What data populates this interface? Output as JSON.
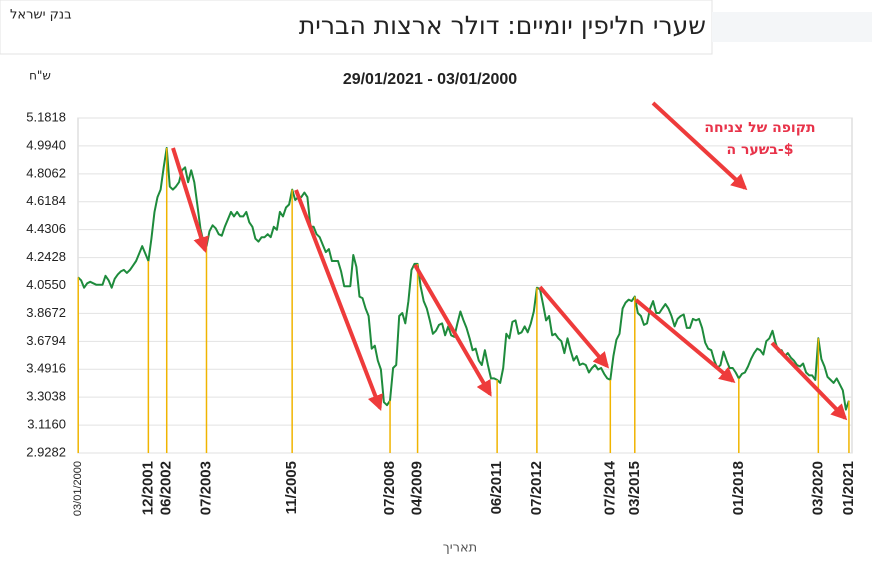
{
  "chart_data": {
    "type": "line",
    "title": "שערי חליפין יומיים: דולר ארצות הברית",
    "source": "בנק ישראל",
    "subtitle": "29/01/2021 - 03/01/2000",
    "y_label": "ש\"ח",
    "x_label": "תאריך",
    "annotation": [
      "תקופה של צניחה",
      "בשער ה-$"
    ],
    "annotation_color": "#e8334a",
    "color": "#1e8b3c",
    "tick_line_color": "#f0b400",
    "grid": true,
    "ylim": [
      2.9282,
      5.1818
    ],
    "yticks": [
      2.9282,
      {
        "value": 3.116,
        "label": "3.1160"
      },
      3.3038,
      3.4916,
      3.6794,
      3.8672,
      {
        "value": 4.055,
        "label": "4.0550"
      },
      4.2428,
      4.4306,
      4.6184,
      4.8062,
      {
        "value": 4.994,
        "label": "4.9940"
      },
      5.1818
    ],
    "xlim": [
      "01/2000",
      "02/2021"
    ],
    "xticks": [
      "03/01/2000",
      "12/2001",
      "06/2002",
      "07/2003",
      "11/2005",
      "07/2008",
      "04/2009",
      "06/2011",
      "07/2012",
      "07/2014",
      "03/2015",
      "01/2018",
      "03/2020",
      "01/2021"
    ],
    "x": [
      "01/2000",
      "02/2000",
      "03/2000",
      "04/2000",
      "05/2000",
      "06/2000",
      "07/2000",
      "08/2000",
      "09/2000",
      "10/2000",
      "11/2000",
      "12/2000",
      "01/2001",
      "02/2001",
      "03/2001",
      "04/2001",
      "05/2001",
      "06/2001",
      "07/2001",
      "08/2001",
      "09/2001",
      "10/2001",
      "11/2001",
      "12/2001",
      "01/2002",
      "02/2002",
      "03/2002",
      "04/2002",
      "05/2002",
      "06/2002",
      "07/2002",
      "08/2002",
      "09/2002",
      "10/2002",
      "11/2002",
      "12/2002",
      "01/2003",
      "02/2003",
      "03/2003",
      "04/2003",
      "05/2003",
      "06/2003",
      "07/2003",
      "08/2003",
      "09/2003",
      "10/2003",
      "11/2003",
      "12/2003",
      "01/2004",
      "02/2004",
      "03/2004",
      "04/2004",
      "05/2004",
      "06/2004",
      "07/2004",
      "08/2004",
      "09/2004",
      "10/2004",
      "11/2004",
      "12/2004",
      "01/2005",
      "02/2005",
      "03/2005",
      "04/2005",
      "05/2005",
      "06/2005",
      "07/2005",
      "08/2005",
      "09/2005",
      "10/2005",
      "11/2005",
      "12/2005",
      "01/2006",
      "02/2006",
      "03/2006",
      "04/2006",
      "05/2006",
      "06/2006",
      "07/2006",
      "08/2006",
      "09/2006",
      "10/2006",
      "11/2006",
      "12/2006",
      "01/2007",
      "02/2007",
      "03/2007",
      "04/2007",
      "05/2007",
      "06/2007",
      "07/2007",
      "08/2007",
      "09/2007",
      "10/2007",
      "11/2007",
      "12/2007",
      "01/2008",
      "02/2008",
      "03/2008",
      "04/2008",
      "05/2008",
      "06/2008",
      "07/2008",
      "08/2008",
      "09/2008",
      "10/2008",
      "11/2008",
      "12/2008",
      "01/2009",
      "02/2009",
      "03/2009",
      "04/2009",
      "05/2009",
      "06/2009",
      "07/2009",
      "08/2009",
      "09/2009",
      "10/2009",
      "11/2009",
      "12/2009",
      "01/2010",
      "02/2010",
      "03/2010",
      "04/2010",
      "05/2010",
      "06/2010",
      "07/2010",
      "08/2010",
      "09/2010",
      "10/2010",
      "11/2010",
      "12/2010",
      "01/2011",
      "02/2011",
      "03/2011",
      "04/2011",
      "05/2011",
      "06/2011",
      "07/2011",
      "08/2011",
      "09/2011",
      "10/2011",
      "11/2011",
      "12/2011",
      "01/2012",
      "02/2012",
      "03/2012",
      "04/2012",
      "05/2012",
      "06/2012",
      "07/2012",
      "08/2012",
      "09/2012",
      "10/2012",
      "11/2012",
      "12/2012",
      "01/2013",
      "02/2013",
      "03/2013",
      "04/2013",
      "05/2013",
      "06/2013",
      "07/2013",
      "08/2013",
      "09/2013",
      "10/2013",
      "11/2013",
      "12/2013",
      "01/2014",
      "02/2014",
      "03/2014",
      "04/2014",
      "05/2014",
      "06/2014",
      "07/2014",
      "08/2014",
      "09/2014",
      "10/2014",
      "11/2014",
      "12/2014",
      "01/2015",
      "02/2015",
      "03/2015",
      "04/2015",
      "05/2015",
      "06/2015",
      "07/2015",
      "08/2015",
      "09/2015",
      "10/2015",
      "11/2015",
      "12/2015",
      "01/2016",
      "02/2016",
      "03/2016",
      "04/2016",
      "05/2016",
      "06/2016",
      "07/2016",
      "08/2016",
      "09/2016",
      "10/2016",
      "11/2016",
      "12/2016",
      "01/2017",
      "02/2017",
      "03/2017",
      "04/2017",
      "05/2017",
      "06/2017",
      "07/2017",
      "08/2017",
      "09/2017",
      "10/2017",
      "11/2017",
      "12/2017",
      "01/2018",
      "02/2018",
      "03/2018",
      "04/2018",
      "05/2018",
      "06/2018",
      "07/2018",
      "08/2018",
      "09/2018",
      "10/2018",
      "11/2018",
      "12/2018",
      "01/2019",
      "02/2019",
      "03/2019",
      "04/2019",
      "05/2019",
      "06/2019",
      "07/2019",
      "08/2019",
      "09/2019",
      "10/2019",
      "11/2019",
      "12/2019",
      "01/2020",
      "02/2020",
      "03/2020",
      "04/2020",
      "05/2020",
      "06/2020",
      "07/2020",
      "08/2020",
      "09/2020",
      "10/2020",
      "11/2020",
      "12/2020",
      "01/2021"
    ],
    "values": [
      4.11,
      4.09,
      4.04,
      4.07,
      4.08,
      4.07,
      4.06,
      4.06,
      4.06,
      4.12,
      4.09,
      4.04,
      4.1,
      4.13,
      4.15,
      4.16,
      4.14,
      4.16,
      4.19,
      4.22,
      4.27,
      4.32,
      4.27,
      4.22,
      4.37,
      4.55,
      4.65,
      4.7,
      4.85,
      4.98,
      4.72,
      4.7,
      4.72,
      4.75,
      4.83,
      4.85,
      4.75,
      4.83,
      4.75,
      4.6,
      4.44,
      4.35,
      4.32,
      4.42,
      4.46,
      4.44,
      4.4,
      4.39,
      4.45,
      4.5,
      4.55,
      4.52,
      4.55,
      4.52,
      4.52,
      4.55,
      4.48,
      4.45,
      4.37,
      4.35,
      4.38,
      4.38,
      4.4,
      4.38,
      4.45,
      4.43,
      4.55,
      4.52,
      4.58,
      4.6,
      4.7,
      4.63,
      4.65,
      4.65,
      4.68,
      4.65,
      4.45,
      4.45,
      4.4,
      4.38,
      4.33,
      4.28,
      4.3,
      4.22,
      4.22,
      4.22,
      4.15,
      4.05,
      4.05,
      4.05,
      4.26,
      4.18,
      3.98,
      3.97,
      3.9,
      3.85,
      3.63,
      3.65,
      3.55,
      3.49,
      3.27,
      3.25,
      3.28,
      3.5,
      3.52,
      3.85,
      3.87,
      3.8,
      3.95,
      4.16,
      4.2,
      4.2,
      4.05,
      3.95,
      3.9,
      3.82,
      3.73,
      3.75,
      3.79,
      3.8,
      3.72,
      3.78,
      3.72,
      3.71,
      3.8,
      3.88,
      3.82,
      3.77,
      3.7,
      3.62,
      3.63,
      3.55,
      3.52,
      3.62,
      3.52,
      3.43,
      3.43,
      3.42,
      3.4,
      3.5,
      3.73,
      3.7,
      3.81,
      3.82,
      3.73,
      3.74,
      3.78,
      3.74,
      3.8,
      3.88,
      4.04,
      4.03,
      3.93,
      3.82,
      3.85,
      3.72,
      3.73,
      3.7,
      3.68,
      3.6,
      3.7,
      3.62,
      3.55,
      3.58,
      3.52,
      3.53,
      3.52,
      3.47,
      3.5,
      3.52,
      3.49,
      3.5,
      3.46,
      3.43,
      3.42,
      3.58,
      3.69,
      3.73,
      3.9,
      3.94,
      3.96,
      3.95,
      3.98,
      3.87,
      3.85,
      3.79,
      3.8,
      3.9,
      3.95,
      3.87,
      3.87,
      3.9,
      3.93,
      3.9,
      3.85,
      3.78,
      3.83,
      3.85,
      3.86,
      3.77,
      3.77,
      3.83,
      3.82,
      3.83,
      3.77,
      3.67,
      3.63,
      3.62,
      3.55,
      3.5,
      3.52,
      3.61,
      3.55,
      3.5,
      3.5,
      3.47,
      3.43,
      3.46,
      3.47,
      3.51,
      3.56,
      3.6,
      3.63,
      3.62,
      3.59,
      3.68,
      3.7,
      3.75,
      3.67,
      3.61,
      3.62,
      3.58,
      3.6,
      3.57,
      3.55,
      3.52,
      3.51,
      3.53,
      3.47,
      3.45,
      3.45,
      3.42,
      3.7,
      3.56,
      3.51,
      3.44,
      3.42,
      3.4,
      3.43,
      3.39,
      3.35,
      3.22,
      3.28
    ]
  }
}
